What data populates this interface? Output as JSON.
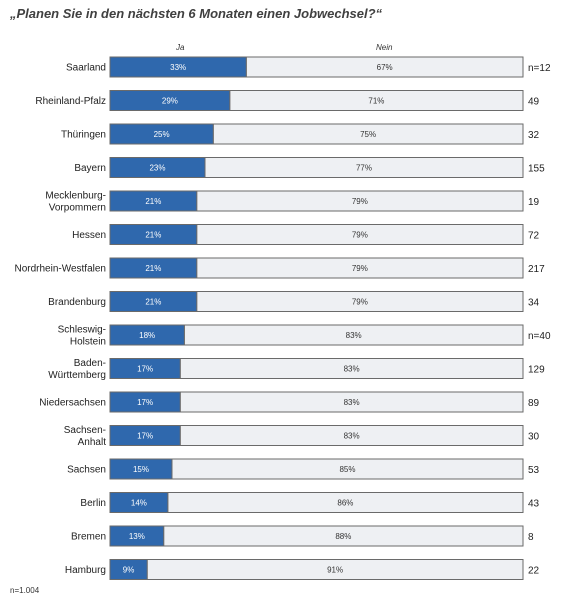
{
  "title": "„Planen Sie in den nächsten 6 Monaten einen Jobwechsel?“",
  "footnote": "n=1.004",
  "colors": {
    "ja": "#2f68ad",
    "nein": "#eef0f3",
    "border": "#6a6a6a"
  },
  "chart_data": {
    "type": "bar",
    "orientation": "horizontal",
    "stacked": true,
    "series_labels": [
      "Ja",
      "Nein"
    ],
    "categories": [
      "Saarland",
      "Rheinland-Pfalz",
      "Thüringen",
      "Bayern",
      "Mecklenburg-Vorpommern",
      "Hessen",
      "Nordrhein-Westfalen",
      "Brandenburg",
      "Schleswig-Holstein",
      "Baden-Württemberg",
      "Niedersachsen",
      "Sachsen-Anhalt",
      "Sachsen",
      "Berlin",
      "Bremen",
      "Hamburg"
    ],
    "category_lines": [
      [
        "Saarland"
      ],
      [
        "Rheinland-Pfalz"
      ],
      [
        "Thüringen"
      ],
      [
        "Bayern"
      ],
      [
        "Mecklenburg-",
        "Vorpommern"
      ],
      [
        "Hessen"
      ],
      [
        "Nordrhein-Westfalen"
      ],
      [
        "Brandenburg"
      ],
      [
        "Schleswig-",
        "Holstein"
      ],
      [
        "Baden-",
        "Württemberg"
      ],
      [
        "Niedersachsen"
      ],
      [
        "Sachsen-",
        "Anhalt"
      ],
      [
        "Sachsen"
      ],
      [
        "Berlin"
      ],
      [
        "Bremen"
      ],
      [
        "Hamburg"
      ]
    ],
    "series": [
      {
        "name": "Ja",
        "values": [
          33,
          29,
          25,
          23,
          21,
          21,
          21,
          21,
          18,
          17,
          17,
          17,
          15,
          14,
          13,
          9
        ]
      },
      {
        "name": "Nein",
        "values": [
          67,
          71,
          75,
          77,
          79,
          79,
          79,
          79,
          83,
          83,
          83,
          83,
          85,
          86,
          88,
          91
        ]
      }
    ],
    "value_labels": {
      "ja": [
        "33%",
        "29%",
        "25%",
        "23%",
        "21%",
        "21%",
        "21%",
        "21%",
        "18%",
        "17%",
        "17%",
        "17%",
        "15%",
        "14%",
        "13%",
        "9%"
      ],
      "nein": [
        "67%",
        "71%",
        "75%",
        "77%",
        "79%",
        "79%",
        "79%",
        "79%",
        "83%",
        "83%",
        "83%",
        "83%",
        "85%",
        "86%",
        "88%",
        "91%"
      ]
    },
    "n_labels": [
      "n=12",
      "49",
      "32",
      "155",
      "19",
      "72",
      "217",
      "34",
      "n=40",
      "129",
      "89",
      "30",
      "53",
      "43",
      "8",
      "22"
    ],
    "xlim": [
      0,
      100
    ]
  }
}
